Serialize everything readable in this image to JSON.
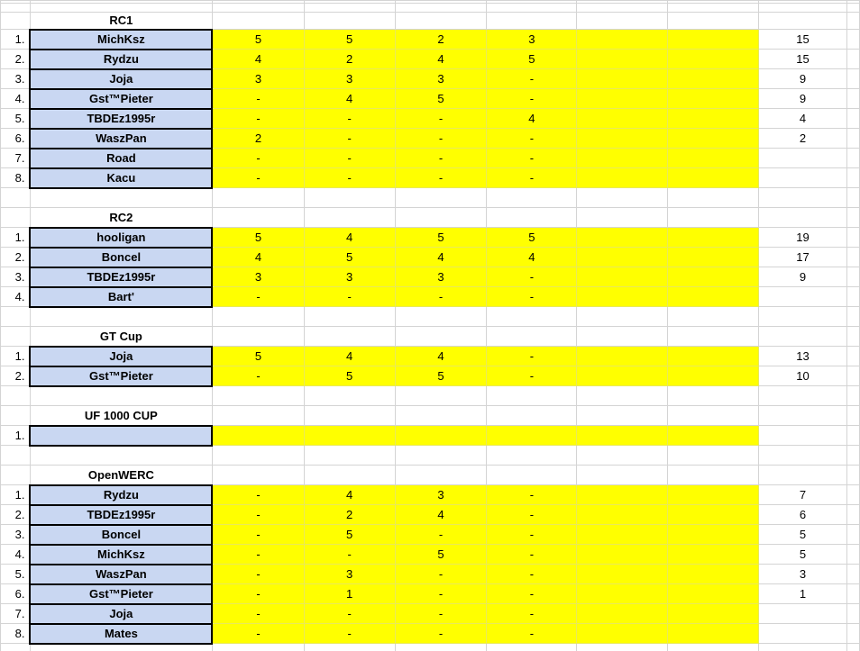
{
  "app": {
    "description": "Spreadsheet of racing championship standings",
    "score_columns": 4,
    "blank_yellow_columns": 2
  },
  "colors": {
    "background": "#ffffff",
    "text": "#000000",
    "gridline": "#d4d4d4",
    "name_cell_fill": "#c9d7f2",
    "name_cell_border": "#000000",
    "score_cell_fill": "#ffff00",
    "score_cell_gridline": "#e9e95a"
  },
  "sections": [
    {
      "title": "RC1",
      "entries": [
        {
          "rank": "1.",
          "name": "MichKsz",
          "scores": [
            "5",
            "5",
            "2",
            "3"
          ],
          "total": "15"
        },
        {
          "rank": "2.",
          "name": "Rydzu",
          "scores": [
            "4",
            "2",
            "4",
            "5"
          ],
          "total": "15"
        },
        {
          "rank": "3.",
          "name": "Joja",
          "scores": [
            "3",
            "3",
            "3",
            "-"
          ],
          "total": "9"
        },
        {
          "rank": "4.",
          "name": "Gst™Pieter",
          "scores": [
            "-",
            "4",
            "5",
            "-"
          ],
          "total": "9"
        },
        {
          "rank": "5.",
          "name": "TBDEz1995r",
          "scores": [
            "-",
            "-",
            "-",
            "4"
          ],
          "total": "4"
        },
        {
          "rank": "6.",
          "name": "WaszPan",
          "scores": [
            "2",
            "-",
            "-",
            "-"
          ],
          "total": "2"
        },
        {
          "rank": "7.",
          "name": "Road",
          "scores": [
            "-",
            "-",
            "-",
            "-"
          ],
          "total": ""
        },
        {
          "rank": "8.",
          "name": "Kacu",
          "scores": [
            "-",
            "-",
            "-",
            "-"
          ],
          "total": ""
        }
      ]
    },
    {
      "title": "RC2",
      "entries": [
        {
          "rank": "1.",
          "name": "hooligan",
          "scores": [
            "5",
            "4",
            "5",
            "5"
          ],
          "total": "19"
        },
        {
          "rank": "2.",
          "name": "Boncel",
          "scores": [
            "4",
            "5",
            "4",
            "4"
          ],
          "total": "17"
        },
        {
          "rank": "3.",
          "name": "TBDEz1995r",
          "scores": [
            "3",
            "3",
            "3",
            "-"
          ],
          "total": "9"
        },
        {
          "rank": "4.",
          "name": "Bart'",
          "scores": [
            "-",
            "-",
            "-",
            "-"
          ],
          "total": ""
        }
      ]
    },
    {
      "title": "GT Cup",
      "entries": [
        {
          "rank": "1.",
          "name": "Joja",
          "scores": [
            "5",
            "4",
            "4",
            "-"
          ],
          "total": "13"
        },
        {
          "rank": "2.",
          "name": "Gst™Pieter",
          "scores": [
            "-",
            "5",
            "5",
            "-"
          ],
          "total": "10"
        }
      ]
    },
    {
      "title": "UF 1000 CUP",
      "entries": [
        {
          "rank": "1.",
          "name": "",
          "scores": [
            "",
            "",
            "",
            ""
          ],
          "total": ""
        }
      ]
    },
    {
      "title": "OpenWERC",
      "entries": [
        {
          "rank": "1.",
          "name": "Rydzu",
          "scores": [
            "-",
            "4",
            "3",
            "-"
          ],
          "total": "7"
        },
        {
          "rank": "2.",
          "name": "TBDEz1995r",
          "scores": [
            "-",
            "2",
            "4",
            "-"
          ],
          "total": "6"
        },
        {
          "rank": "3.",
          "name": "Boncel",
          "scores": [
            "-",
            "5",
            "-",
            "-"
          ],
          "total": "5"
        },
        {
          "rank": "4.",
          "name": "MichKsz",
          "scores": [
            "-",
            "-",
            "5",
            "-"
          ],
          "total": "5"
        },
        {
          "rank": "5.",
          "name": "WaszPan",
          "scores": [
            "-",
            "3",
            "-",
            "-"
          ],
          "total": "3"
        },
        {
          "rank": "6.",
          "name": "Gst™Pieter",
          "scores": [
            "-",
            "1",
            "-",
            "-"
          ],
          "total": "1"
        },
        {
          "rank": "7.",
          "name": "Joja",
          "scores": [
            "-",
            "-",
            "-",
            "-"
          ],
          "total": ""
        },
        {
          "rank": "8.",
          "name": "Mates",
          "scores": [
            "-",
            "-",
            "-",
            "-"
          ],
          "total": ""
        }
      ]
    }
  ]
}
